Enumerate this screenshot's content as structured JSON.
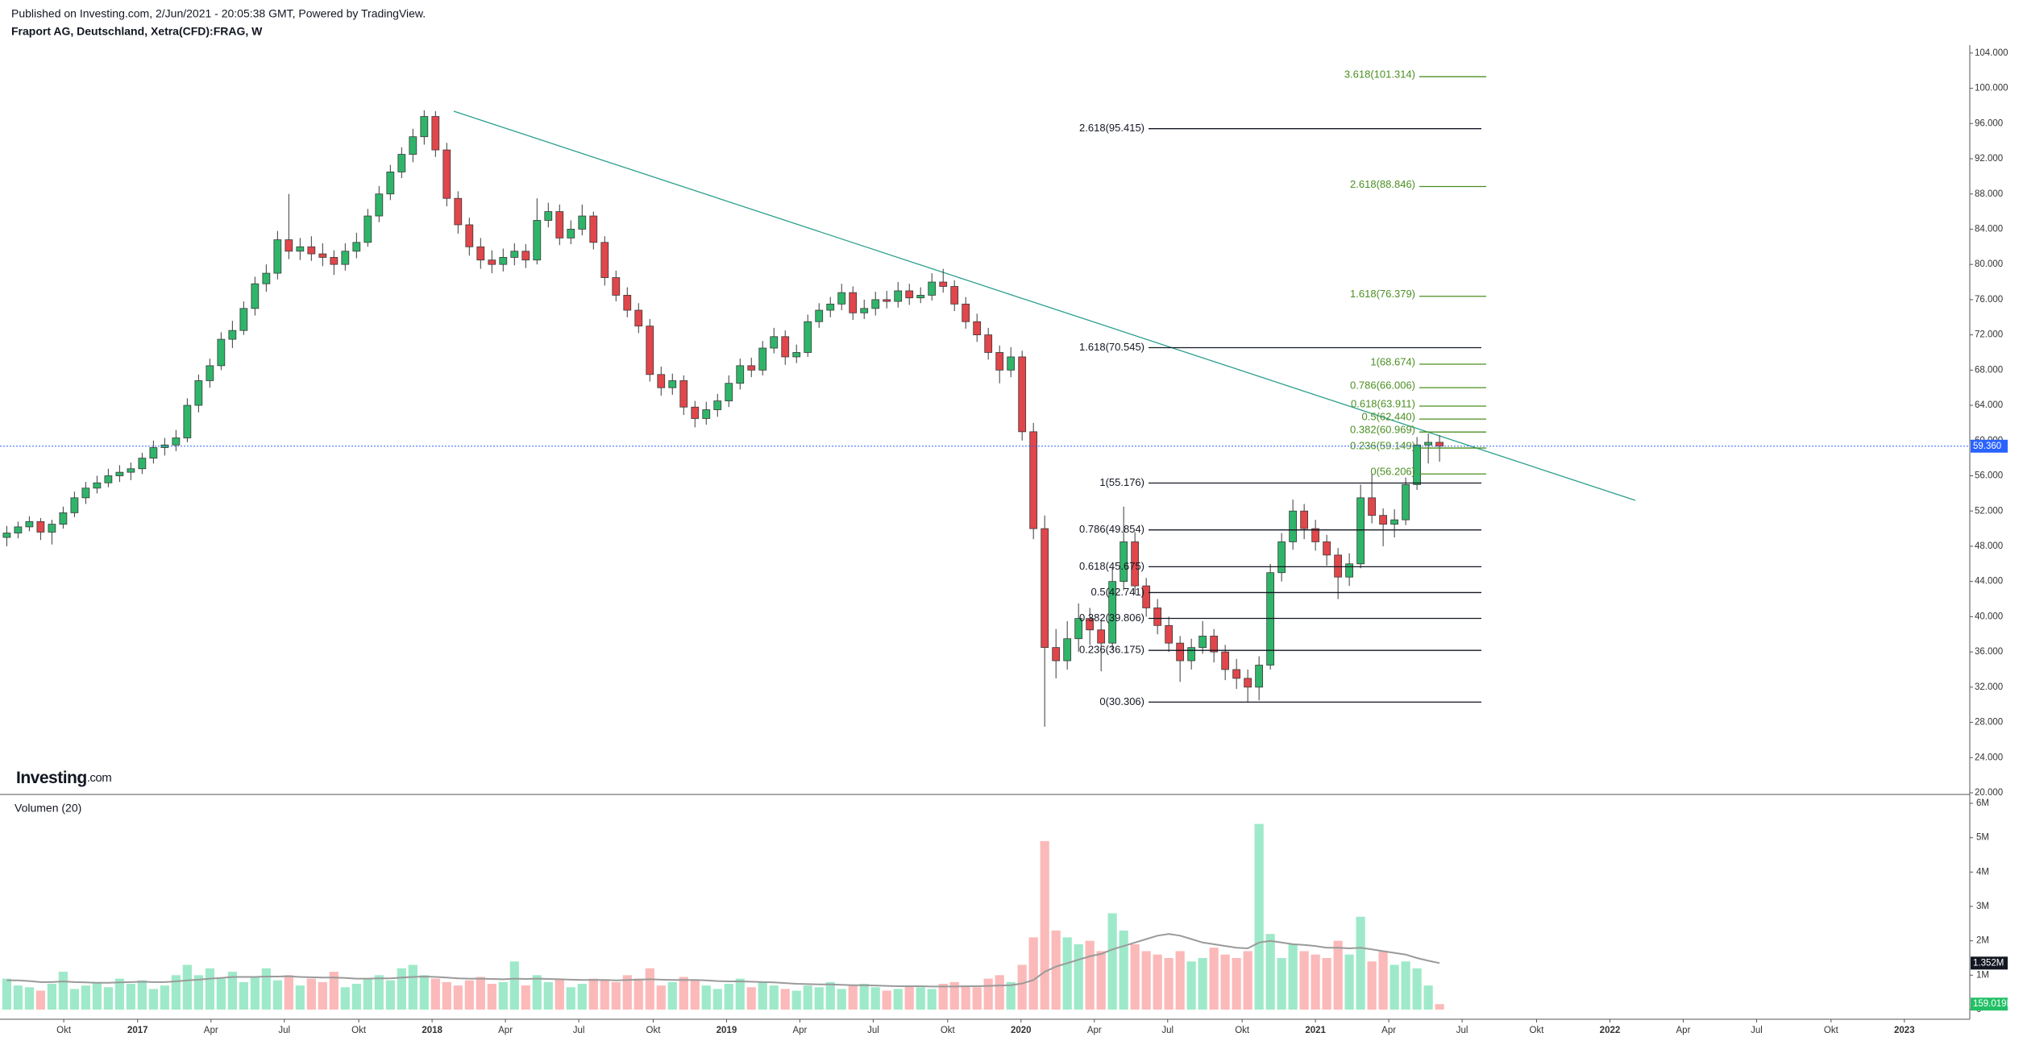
{
  "header": {
    "published": "Published on Investing.com, 2/Jun/2021 - 20:05:38 GMT, Powered by TradingView.",
    "symbol": "Fraport AG, Deutschland, Xetra(CFD):FRAG, W"
  },
  "logo": {
    "brand": "Investing",
    "suffix": ".com"
  },
  "chart_data": {
    "type": "candlestick",
    "up_color": "#2fb56a",
    "down_color": "#e0464a",
    "wick_color": "#3a3a3a",
    "xlim": [
      -0.6,
      174
    ],
    "xticks": [
      {
        "value": 5.05,
        "label": "Okt"
      },
      {
        "value": 11.6,
        "label": "2017"
      },
      {
        "value": 18.1,
        "label": "Apr"
      },
      {
        "value": 24.6,
        "label": "Jul"
      },
      {
        "value": 31.2,
        "label": "Okt"
      },
      {
        "value": 37.7,
        "label": "2018"
      },
      {
        "value": 44.2,
        "label": "Apr"
      },
      {
        "value": 50.7,
        "label": "Jul"
      },
      {
        "value": 57.3,
        "label": "Okt"
      },
      {
        "value": 63.8,
        "label": "2019"
      },
      {
        "value": 70.3,
        "label": "Apr"
      },
      {
        "value": 76.8,
        "label": "Jul"
      },
      {
        "value": 83.4,
        "label": "Okt"
      },
      {
        "value": 89.9,
        "label": "2020"
      },
      {
        "value": 96.4,
        "label": "Apr"
      },
      {
        "value": 102.9,
        "label": "Jul"
      },
      {
        "value": 109.5,
        "label": "Okt"
      },
      {
        "value": 116.0,
        "label": "2021"
      },
      {
        "value": 122.5,
        "label": "Apr"
      },
      {
        "value": 129.0,
        "label": "Jul"
      },
      {
        "value": 135.6,
        "label": "Okt"
      },
      {
        "value": 142.1,
        "label": "2022"
      },
      {
        "value": 148.6,
        "label": "Apr"
      },
      {
        "value": 155.1,
        "label": "Jul"
      },
      {
        "value": 161.7,
        "label": "Okt"
      },
      {
        "value": 168.2,
        "label": "2023"
      }
    ],
    "ylim": [
      20,
      104.9
    ],
    "yticks": [
      {
        "value": 20,
        "label": "20.000"
      },
      {
        "value": 24,
        "label": "24.000"
      },
      {
        "value": 28,
        "label": "28.000"
      },
      {
        "value": 32,
        "label": "32.000"
      },
      {
        "value": 36,
        "label": "36.000"
      },
      {
        "value": 40,
        "label": "40.000"
      },
      {
        "value": 44,
        "label": "44.000"
      },
      {
        "value": 48,
        "label": "48.000"
      },
      {
        "value": 52,
        "label": "52.000"
      },
      {
        "value": 56,
        "label": "56.000"
      },
      {
        "value": 60,
        "label": "60.000"
      },
      {
        "value": 64,
        "label": "64.000"
      },
      {
        "value": 68,
        "label": "68.000"
      },
      {
        "value": 72,
        "label": "72.000"
      },
      {
        "value": 76,
        "label": "76.000"
      },
      {
        "value": 80,
        "label": "80.000"
      },
      {
        "value": 84,
        "label": "84.000"
      },
      {
        "value": 88,
        "label": "88.000"
      },
      {
        "value": 92,
        "label": "92.000"
      },
      {
        "value": 96,
        "label": "96.000"
      },
      {
        "value": 100,
        "label": "100.000"
      },
      {
        "value": 104,
        "label": "104.000"
      }
    ],
    "last_price": {
      "value": 59.36,
      "label": "59.360",
      "color": "#2962ff"
    },
    "candles": [
      [
        49.0,
        50.3,
        48.0,
        49.5
      ],
      [
        49.5,
        50.8,
        48.9,
        50.2
      ],
      [
        50.2,
        51.4,
        49.7,
        50.8
      ],
      [
        50.8,
        51.2,
        48.7,
        49.6
      ],
      [
        49.6,
        51.0,
        48.2,
        50.5
      ],
      [
        50.5,
        52.5,
        50.0,
        51.8
      ],
      [
        51.8,
        54.2,
        51.3,
        53.5
      ],
      [
        53.5,
        55.3,
        52.8,
        54.6
      ],
      [
        54.6,
        56.0,
        54.0,
        55.2
      ],
      [
        55.2,
        56.8,
        54.7,
        56.0
      ],
      [
        56.0,
        57.2,
        55.3,
        56.4
      ],
      [
        56.4,
        57.5,
        55.5,
        56.8
      ],
      [
        56.8,
        58.6,
        56.2,
        58.0
      ],
      [
        58.0,
        60.0,
        57.4,
        59.2
      ],
      [
        59.2,
        60.3,
        58.3,
        59.5
      ],
      [
        59.5,
        61.2,
        58.8,
        60.3
      ],
      [
        60.3,
        64.8,
        59.8,
        64.0
      ],
      [
        64.0,
        67.5,
        63.2,
        66.8
      ],
      [
        66.8,
        69.3,
        66.0,
        68.5
      ],
      [
        68.5,
        72.3,
        68.0,
        71.5
      ],
      [
        71.5,
        73.6,
        70.5,
        72.5
      ],
      [
        72.5,
        75.8,
        72.0,
        75.0
      ],
      [
        75.0,
        78.6,
        74.2,
        77.8
      ],
      [
        77.8,
        80.0,
        76.9,
        79.0
      ],
      [
        79.0,
        83.8,
        78.3,
        82.8
      ],
      [
        82.8,
        88.0,
        80.6,
        81.5
      ],
      [
        81.5,
        83.0,
        80.5,
        82.0
      ],
      [
        82.0,
        83.2,
        80.4,
        81.2
      ],
      [
        81.2,
        82.4,
        79.8,
        80.8
      ],
      [
        80.8,
        81.6,
        78.8,
        80.0
      ],
      [
        80.0,
        82.4,
        79.3,
        81.5
      ],
      [
        81.5,
        83.6,
        80.7,
        82.5
      ],
      [
        82.5,
        86.3,
        82.0,
        85.5
      ],
      [
        85.5,
        88.9,
        84.8,
        88.0
      ],
      [
        88.0,
        91.3,
        87.3,
        90.5
      ],
      [
        90.5,
        93.3,
        89.8,
        92.5
      ],
      [
        92.5,
        95.4,
        91.6,
        94.5
      ],
      [
        94.5,
        97.5,
        93.6,
        96.8
      ],
      [
        96.8,
        97.4,
        92.2,
        93.0
      ],
      [
        93.0,
        93.8,
        86.6,
        87.5
      ],
      [
        87.5,
        88.3,
        83.5,
        84.5
      ],
      [
        84.5,
        85.3,
        81.0,
        82.0
      ],
      [
        82.0,
        83.0,
        79.5,
        80.5
      ],
      [
        80.5,
        81.6,
        79.0,
        80.0
      ],
      [
        80.0,
        81.8,
        79.2,
        80.8
      ],
      [
        80.8,
        82.4,
        79.9,
        81.5
      ],
      [
        81.5,
        82.3,
        79.6,
        80.5
      ],
      [
        80.5,
        87.5,
        80.0,
        85.0
      ],
      [
        85.0,
        87.0,
        84.2,
        86.0
      ],
      [
        86.0,
        86.8,
        82.2,
        83.0
      ],
      [
        83.0,
        85.0,
        82.3,
        84.0
      ],
      [
        84.0,
        86.8,
        83.3,
        85.5
      ],
      [
        85.5,
        86.0,
        81.7,
        82.5
      ],
      [
        82.5,
        83.2,
        77.6,
        78.5
      ],
      [
        78.5,
        79.3,
        75.8,
        76.5
      ],
      [
        76.5,
        77.4,
        74.0,
        74.8
      ],
      [
        74.8,
        75.6,
        72.2,
        73.0
      ],
      [
        73.0,
        73.8,
        66.7,
        67.5
      ],
      [
        67.5,
        68.4,
        65.1,
        66.0
      ],
      [
        66.0,
        67.6,
        65.2,
        66.8
      ],
      [
        66.8,
        67.4,
        62.9,
        63.8
      ],
      [
        63.8,
        64.5,
        61.5,
        62.5
      ],
      [
        62.5,
        64.4,
        61.8,
        63.5
      ],
      [
        63.5,
        65.3,
        62.7,
        64.5
      ],
      [
        64.5,
        67.4,
        63.8,
        66.5
      ],
      [
        66.5,
        69.3,
        65.8,
        68.5
      ],
      [
        68.5,
        69.4,
        67.2,
        68.0
      ],
      [
        68.0,
        71.3,
        67.4,
        70.5
      ],
      [
        70.5,
        72.8,
        69.9,
        71.8
      ],
      [
        71.8,
        72.5,
        68.6,
        69.5
      ],
      [
        69.5,
        70.9,
        68.8,
        70.0
      ],
      [
        70.0,
        74.3,
        69.5,
        73.5
      ],
      [
        73.5,
        75.6,
        72.8,
        74.8
      ],
      [
        74.8,
        76.3,
        74.0,
        75.5
      ],
      [
        75.5,
        77.8,
        74.8,
        76.8
      ],
      [
        76.8,
        77.5,
        73.7,
        74.5
      ],
      [
        74.5,
        76.0,
        73.8,
        75.0
      ],
      [
        75.0,
        76.9,
        74.2,
        76.0
      ],
      [
        76.0,
        77.0,
        75.0,
        75.8
      ],
      [
        75.8,
        78.0,
        75.1,
        77.0
      ],
      [
        77.0,
        77.8,
        75.4,
        76.2
      ],
      [
        76.2,
        77.4,
        75.6,
        76.5
      ],
      [
        76.5,
        79.0,
        75.9,
        78.0
      ],
      [
        78.0,
        79.5,
        76.8,
        77.5
      ],
      [
        77.5,
        78.2,
        74.7,
        75.5
      ],
      [
        75.5,
        76.3,
        72.7,
        73.5
      ],
      [
        73.5,
        74.4,
        71.2,
        72.0
      ],
      [
        72.0,
        72.8,
        69.2,
        70.0
      ],
      [
        70.0,
        70.8,
        66.5,
        68.0
      ],
      [
        68.0,
        70.6,
        67.2,
        69.5
      ],
      [
        69.5,
        70.2,
        60.0,
        61.0
      ],
      [
        61.0,
        62.0,
        48.8,
        50.0
      ],
      [
        50.0,
        51.5,
        27.5,
        36.5
      ],
      [
        36.5,
        38.6,
        33.0,
        35.0
      ],
      [
        35.0,
        39.5,
        34.0,
        37.5
      ],
      [
        37.5,
        41.5,
        36.0,
        39.8
      ],
      [
        39.8,
        41.0,
        36.8,
        38.5
      ],
      [
        38.5,
        39.6,
        33.8,
        37.0
      ],
      [
        37.0,
        45.5,
        36.2,
        44.0
      ],
      [
        44.0,
        52.5,
        43.0,
        48.5
      ],
      [
        48.5,
        49.6,
        42.5,
        43.5
      ],
      [
        43.5,
        44.4,
        40.0,
        41.0
      ],
      [
        41.0,
        42.0,
        38.0,
        39.0
      ],
      [
        39.0,
        40.0,
        36.0,
        37.0
      ],
      [
        37.0,
        37.8,
        32.6,
        35.0
      ],
      [
        35.0,
        37.5,
        34.0,
        36.5
      ],
      [
        36.5,
        39.5,
        35.8,
        37.8
      ],
      [
        37.8,
        38.6,
        34.8,
        36.0
      ],
      [
        36.0,
        36.8,
        32.8,
        34.0
      ],
      [
        34.0,
        35.2,
        31.8,
        33.0
      ],
      [
        33.0,
        34.0,
        30.3,
        32.0
      ],
      [
        32.0,
        35.5,
        30.5,
        34.5
      ],
      [
        34.5,
        46.0,
        34.0,
        45.0
      ],
      [
        45.0,
        49.5,
        44.0,
        48.5
      ],
      [
        48.5,
        53.3,
        47.6,
        52.0
      ],
      [
        52.0,
        52.8,
        48.8,
        50.0
      ],
      [
        50.0,
        51.0,
        47.5,
        48.5
      ],
      [
        48.5,
        49.3,
        45.8,
        47.0
      ],
      [
        47.0,
        47.8,
        42.0,
        44.5
      ],
      [
        44.5,
        47.2,
        43.5,
        46.0
      ],
      [
        46.0,
        55.0,
        45.5,
        53.5
      ],
      [
        53.5,
        56.2,
        50.6,
        51.5
      ],
      [
        51.5,
        52.3,
        48.0,
        50.5
      ],
      [
        50.5,
        52.2,
        49.0,
        51.0
      ],
      [
        51.0,
        55.8,
        50.4,
        55.0
      ],
      [
        55.0,
        60.4,
        54.4,
        59.5
      ],
      [
        59.5,
        60.8,
        57.4,
        59.8
      ],
      [
        59.8,
        60.6,
        57.6,
        59.36
      ]
    ],
    "fib_sets": [
      {
        "color": "#131722",
        "levels": [
          {
            "value": 30.306,
            "label": "0(30.306)"
          },
          {
            "value": 36.175,
            "label": "0.236(36.175)"
          },
          {
            "value": 39.806,
            "label": "0.382(39.806)"
          },
          {
            "value": 42.741,
            "label": "0.5(42.741)"
          },
          {
            "value": 45.675,
            "label": "0.618(45.675)"
          },
          {
            "value": 49.854,
            "label": "0.786(49.854)"
          },
          {
            "value": 55.176,
            "label": "1(55.176)"
          },
          {
            "value": 70.545,
            "label": "1.618(70.545)"
          },
          {
            "value": 95.415,
            "label": "2.618(95.415)"
          }
        ]
      },
      {
        "color": "#4b8f22",
        "levels": [
          {
            "value": 56.206,
            "label": "0(56.206)"
          },
          {
            "value": 59.149,
            "label": "0.236(59.149)"
          },
          {
            "value": 60.969,
            "label": "0.382(60.969)"
          },
          {
            "value": 62.44,
            "label": "0.5(62.440)"
          },
          {
            "value": 63.911,
            "label": "0.618(63.911)"
          },
          {
            "value": 66.006,
            "label": "0.786(66.006)"
          },
          {
            "value": 68.674,
            "label": "1(68.674)"
          },
          {
            "value": 76.379,
            "label": "1.618(76.379)"
          },
          {
            "value": 88.846,
            "label": "2.618(88.846)"
          },
          {
            "value": 101.314,
            "label": "3.618(101.314)"
          }
        ]
      }
    ],
    "trendline_color": "#2aa08c",
    "volume": {
      "title": "Volumen (20)",
      "up_color": "#9ee9c9",
      "down_color": "#fbb9b9",
      "ma_color": "#9a9a9a",
      "ylim": [
        0,
        6210000
      ],
      "yticks": [
        0,
        {
          "value": 1000000,
          "label": "1M"
        },
        {
          "value": 2000000,
          "label": "2M"
        },
        {
          "value": 3000000,
          "label": "3M"
        },
        {
          "value": 4000000,
          "label": "4M"
        },
        {
          "value": 5000000,
          "label": "5M"
        },
        {
          "value": 6000000,
          "label": "6M"
        }
      ],
      "ma_label": {
        "value": 1352000,
        "label": "1.352M",
        "color": "#131722"
      },
      "last_label": {
        "value": 159019,
        "label": "159.019K",
        "color": "#22c065"
      },
      "values": [
        900000,
        700000,
        650000,
        550000,
        750000,
        1100000,
        600000,
        700000,
        800000,
        650000,
        900000,
        750000,
        850000,
        600000,
        700000,
        1000000,
        1300000,
        1000000,
        1200000,
        900000,
        1100000,
        800000,
        950000,
        1200000,
        850000,
        1000000,
        700000,
        900000,
        800000,
        1100000,
        650000,
        750000,
        900000,
        1000000,
        850000,
        1200000,
        1300000,
        1000000,
        900000,
        800000,
        700000,
        850000,
        950000,
        750000,
        800000,
        1400000,
        700000,
        1000000,
        800000,
        900000,
        650000,
        750000,
        900000,
        850000,
        800000,
        1000000,
        900000,
        1200000,
        700000,
        800000,
        950000,
        850000,
        700000,
        600000,
        750000,
        900000,
        650000,
        800000,
        700000,
        600000,
        550000,
        700000,
        650000,
        800000,
        600000,
        700000,
        750000,
        650000,
        550000,
        600000,
        700000,
        650000,
        600000,
        750000,
        800000,
        700000,
        650000,
        900000,
        1000000,
        800000,
        1300000,
        2100000,
        4900000,
        2300000,
        2100000,
        1900000,
        2000000,
        1700000,
        2800000,
        2300000,
        1900000,
        1700000,
        1600000,
        1500000,
        1700000,
        1400000,
        1500000,
        1800000,
        1600000,
        1500000,
        1700000,
        5400000,
        2200000,
        1500000,
        1900000,
        1700000,
        1600000,
        1500000,
        2000000,
        1600000,
        2700000,
        1400000,
        1700000,
        1300000,
        1400000,
        1200000,
        700000,
        159019
      ],
      "ma": [
        850000,
        850000,
        830000,
        800000,
        800000,
        820000,
        800000,
        790000,
        780000,
        780000,
        790000,
        800000,
        810000,
        800000,
        800000,
        820000,
        850000,
        870000,
        900000,
        920000,
        950000,
        950000,
        950000,
        960000,
        960000,
        970000,
        950000,
        940000,
        930000,
        930000,
        920000,
        900000,
        900000,
        910000,
        910000,
        930000,
        950000,
        960000,
        950000,
        930000,
        910000,
        900000,
        900000,
        890000,
        880000,
        900000,
        890000,
        900000,
        890000,
        880000,
        870000,
        860000,
        860000,
        860000,
        850000,
        860000,
        870000,
        880000,
        870000,
        860000,
        860000,
        860000,
        850000,
        830000,
        820000,
        820000,
        810000,
        800000,
        790000,
        770000,
        750000,
        740000,
        730000,
        730000,
        720000,
        710000,
        710000,
        700000,
        690000,
        680000,
        680000,
        680000,
        670000,
        670000,
        670000,
        680000,
        680000,
        690000,
        700000,
        710000,
        760000,
        860000,
        1100000,
        1250000,
        1350000,
        1450000,
        1550000,
        1620000,
        1750000,
        1850000,
        1950000,
        2050000,
        2150000,
        2200000,
        2150000,
        2050000,
        1950000,
        1900000,
        1850000,
        1800000,
        1780000,
        1950000,
        2000000,
        1950000,
        1900000,
        1880000,
        1850000,
        1800000,
        1800000,
        1780000,
        1800000,
        1750000,
        1700000,
        1650000,
        1600000,
        1500000,
        1420000,
        1352000
      ]
    }
  }
}
